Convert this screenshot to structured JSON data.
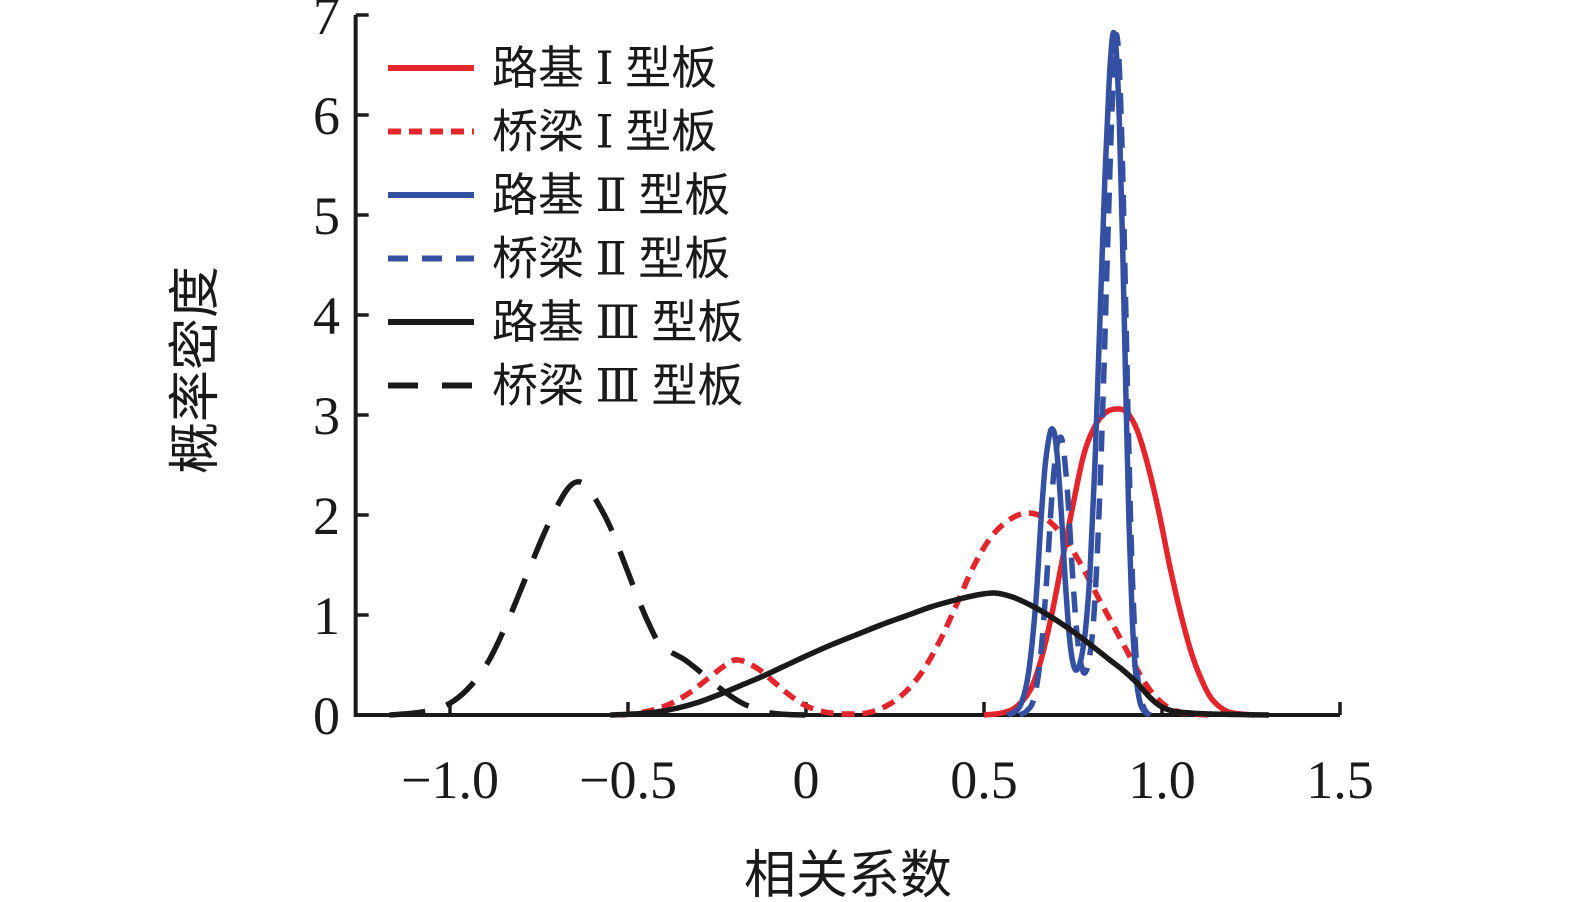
{
  "figure": {
    "background": "#ffffff",
    "axis_color": "#1a1a1a"
  },
  "chart_data": {
    "type": "line",
    "title": "",
    "xlabel": "相关系数",
    "ylabel": "概率密度",
    "xlim": [
      -1.265,
      1.5
    ],
    "ylim": [
      0,
      7
    ],
    "grid": false,
    "legend_position": "upper-left",
    "x_ticks": {
      "values": [
        -1.0,
        -0.5,
        0,
        0.5,
        1.0,
        1.5
      ],
      "labels": [
        "−1.0",
        "−0.5",
        "0",
        "0.5",
        "1.0",
        "1.5"
      ]
    },
    "y_ticks": {
      "values": [
        0,
        1,
        2,
        3,
        4,
        5,
        6,
        7
      ],
      "labels": [
        "0",
        "1",
        "2",
        "3",
        "4",
        "5",
        "6",
        "7"
      ]
    },
    "series": [
      {
        "name": "路基 Ⅰ 型板",
        "color": "#e2262c",
        "line_style": "solid",
        "dasharray": "",
        "legend_dasharray": "",
        "points": [
          [
            0.5,
            0
          ],
          [
            0.55,
            0.02
          ],
          [
            0.59,
            0.08
          ],
          [
            0.63,
            0.25
          ],
          [
            0.66,
            0.55
          ],
          [
            0.69,
            1.0
          ],
          [
            0.72,
            1.55
          ],
          [
            0.75,
            2.1
          ],
          [
            0.78,
            2.6
          ],
          [
            0.81,
            2.88
          ],
          [
            0.84,
            3.02
          ],
          [
            0.87,
            3.06
          ],
          [
            0.9,
            3.03
          ],
          [
            0.93,
            2.85
          ],
          [
            0.96,
            2.5
          ],
          [
            0.99,
            2.05
          ],
          [
            1.02,
            1.52
          ],
          [
            1.05,
            1.05
          ],
          [
            1.08,
            0.65
          ],
          [
            1.11,
            0.36
          ],
          [
            1.14,
            0.16
          ],
          [
            1.18,
            0.04
          ],
          [
            1.22,
            0.01
          ],
          [
            1.26,
            0
          ]
        ]
      },
      {
        "name": "桥梁 Ⅰ 型板",
        "color": "#e2262c",
        "line_style": "dashed",
        "dasharray": "13 8",
        "legend_dasharray": "13 8",
        "points": [
          [
            -0.52,
            0
          ],
          [
            -0.47,
            0.02
          ],
          [
            -0.42,
            0.06
          ],
          [
            -0.37,
            0.13
          ],
          [
            -0.32,
            0.24
          ],
          [
            -0.27,
            0.38
          ],
          [
            -0.23,
            0.49
          ],
          [
            -0.2,
            0.55
          ],
          [
            -0.17,
            0.53
          ],
          [
            -0.13,
            0.45
          ],
          [
            -0.09,
            0.33
          ],
          [
            -0.05,
            0.21
          ],
          [
            -0.01,
            0.11
          ],
          [
            0.03,
            0.05
          ],
          [
            0.07,
            0.02
          ],
          [
            0.12,
            0.01
          ],
          [
            0.17,
            0.02
          ],
          [
            0.22,
            0.08
          ],
          [
            0.27,
            0.2
          ],
          [
            0.32,
            0.4
          ],
          [
            0.37,
            0.7
          ],
          [
            0.42,
            1.08
          ],
          [
            0.47,
            1.48
          ],
          [
            0.52,
            1.78
          ],
          [
            0.57,
            1.95
          ],
          [
            0.62,
            2.02
          ],
          [
            0.67,
            1.97
          ],
          [
            0.72,
            1.8
          ],
          [
            0.77,
            1.52
          ],
          [
            0.82,
            1.18
          ],
          [
            0.87,
            0.85
          ],
          [
            0.92,
            0.52
          ],
          [
            0.96,
            0.28
          ],
          [
            1.0,
            0.12
          ],
          [
            1.04,
            0.04
          ],
          [
            1.09,
            0.01
          ],
          [
            1.14,
            0
          ]
        ]
      },
      {
        "name": "路基 Ⅱ 型板",
        "color": "#3450a2",
        "line_style": "solid",
        "dasharray": "",
        "legend_dasharray": "",
        "points": [
          [
            0.565,
            0
          ],
          [
            0.585,
            0.03
          ],
          [
            0.605,
            0.12
          ],
          [
            0.625,
            0.42
          ],
          [
            0.645,
            1.1
          ],
          [
            0.66,
            1.95
          ],
          [
            0.672,
            2.5
          ],
          [
            0.683,
            2.78
          ],
          [
            0.692,
            2.86
          ],
          [
            0.702,
            2.72
          ],
          [
            0.715,
            2.15
          ],
          [
            0.728,
            1.35
          ],
          [
            0.74,
            0.78
          ],
          [
            0.75,
            0.52
          ],
          [
            0.76,
            0.45
          ],
          [
            0.772,
            0.55
          ],
          [
            0.785,
            0.85
          ],
          [
            0.798,
            1.45
          ],
          [
            0.812,
            2.55
          ],
          [
            0.826,
            4.0
          ],
          [
            0.84,
            5.4
          ],
          [
            0.851,
            6.3
          ],
          [
            0.859,
            6.72
          ],
          [
            0.865,
            6.82
          ],
          [
            0.872,
            6.62
          ],
          [
            0.88,
            5.95
          ],
          [
            0.889,
            4.75
          ],
          [
            0.898,
            3.3
          ],
          [
            0.907,
            1.95
          ],
          [
            0.916,
            1.0
          ],
          [
            0.926,
            0.42
          ],
          [
            0.938,
            0.13
          ],
          [
            0.952,
            0.03
          ],
          [
            0.968,
            0
          ]
        ]
      },
      {
        "name": "桥梁 Ⅱ 型板",
        "color": "#3450a2",
        "line_style": "dashed",
        "dasharray": "21 13",
        "legend_dasharray": "20 14",
        "points": [
          [
            0.6,
            0
          ],
          [
            0.62,
            0.04
          ],
          [
            0.64,
            0.16
          ],
          [
            0.658,
            0.55
          ],
          [
            0.675,
            1.3
          ],
          [
            0.69,
            2.15
          ],
          [
            0.702,
            2.62
          ],
          [
            0.712,
            2.77
          ],
          [
            0.722,
            2.7
          ],
          [
            0.735,
            2.2
          ],
          [
            0.748,
            1.45
          ],
          [
            0.76,
            0.85
          ],
          [
            0.772,
            0.52
          ],
          [
            0.783,
            0.42
          ],
          [
            0.795,
            0.55
          ],
          [
            0.808,
            0.95
          ],
          [
            0.82,
            1.75
          ],
          [
            0.833,
            3.0
          ],
          [
            0.846,
            4.55
          ],
          [
            0.857,
            5.8
          ],
          [
            0.865,
            6.5
          ],
          [
            0.871,
            6.8
          ],
          [
            0.878,
            6.62
          ],
          [
            0.886,
            5.9
          ],
          [
            0.895,
            4.6
          ],
          [
            0.904,
            3.1
          ],
          [
            0.913,
            1.8
          ],
          [
            0.923,
            0.85
          ],
          [
            0.934,
            0.3
          ],
          [
            0.948,
            0.08
          ],
          [
            0.963,
            0
          ]
        ]
      },
      {
        "name": "路基 Ⅲ 型板",
        "color": "#1a1a1a",
        "line_style": "solid",
        "dasharray": "",
        "legend_dasharray": "",
        "points": [
          [
            -0.55,
            0
          ],
          [
            -0.48,
            0.01
          ],
          [
            -0.42,
            0.03
          ],
          [
            -0.36,
            0.07
          ],
          [
            -0.3,
            0.13
          ],
          [
            -0.24,
            0.21
          ],
          [
            -0.18,
            0.3
          ],
          [
            -0.12,
            0.39
          ],
          [
            -0.06,
            0.49
          ],
          [
            0.0,
            0.59
          ],
          [
            0.07,
            0.7
          ],
          [
            0.14,
            0.8
          ],
          [
            0.21,
            0.9
          ],
          [
            0.28,
            0.99
          ],
          [
            0.35,
            1.08
          ],
          [
            0.42,
            1.15
          ],
          [
            0.48,
            1.2
          ],
          [
            0.53,
            1.22
          ],
          [
            0.58,
            1.18
          ],
          [
            0.63,
            1.1
          ],
          [
            0.68,
            1.0
          ],
          [
            0.74,
            0.86
          ],
          [
            0.8,
            0.7
          ],
          [
            0.85,
            0.56
          ],
          [
            0.89,
            0.45
          ],
          [
            0.93,
            0.32
          ],
          [
            0.965,
            0.18
          ],
          [
            0.995,
            0.09
          ],
          [
            1.03,
            0.04
          ],
          [
            1.08,
            0.02
          ],
          [
            1.14,
            0.01
          ],
          [
            1.22,
            0.005
          ],
          [
            1.3,
            0
          ]
        ]
      },
      {
        "name": "桥梁 Ⅲ 型板",
        "color": "#1a1a1a",
        "line_style": "dashed",
        "dasharray": "36 22",
        "legend_dasharray": "30 24",
        "points": [
          [
            -1.17,
            0
          ],
          [
            -1.1,
            0.02
          ],
          [
            -1.04,
            0.06
          ],
          [
            -0.99,
            0.14
          ],
          [
            -0.94,
            0.3
          ],
          [
            -0.89,
            0.55
          ],
          [
            -0.84,
            0.92
          ],
          [
            -0.79,
            1.35
          ],
          [
            -0.74,
            1.78
          ],
          [
            -0.7,
            2.08
          ],
          [
            -0.67,
            2.26
          ],
          [
            -0.645,
            2.33
          ],
          [
            -0.62,
            2.3
          ],
          [
            -0.59,
            2.15
          ],
          [
            -0.55,
            1.88
          ],
          [
            -0.51,
            1.52
          ],
          [
            -0.47,
            1.15
          ],
          [
            -0.44,
            0.9
          ],
          [
            -0.41,
            0.7
          ],
          [
            -0.38,
            0.63
          ],
          [
            -0.34,
            0.55
          ],
          [
            -0.3,
            0.44
          ],
          [
            -0.26,
            0.32
          ],
          [
            -0.22,
            0.21
          ],
          [
            -0.18,
            0.12
          ],
          [
            -0.14,
            0.06
          ],
          [
            -0.1,
            0.02
          ],
          [
            -0.05,
            0.005
          ],
          [
            0.0,
            0
          ]
        ]
      }
    ]
  }
}
